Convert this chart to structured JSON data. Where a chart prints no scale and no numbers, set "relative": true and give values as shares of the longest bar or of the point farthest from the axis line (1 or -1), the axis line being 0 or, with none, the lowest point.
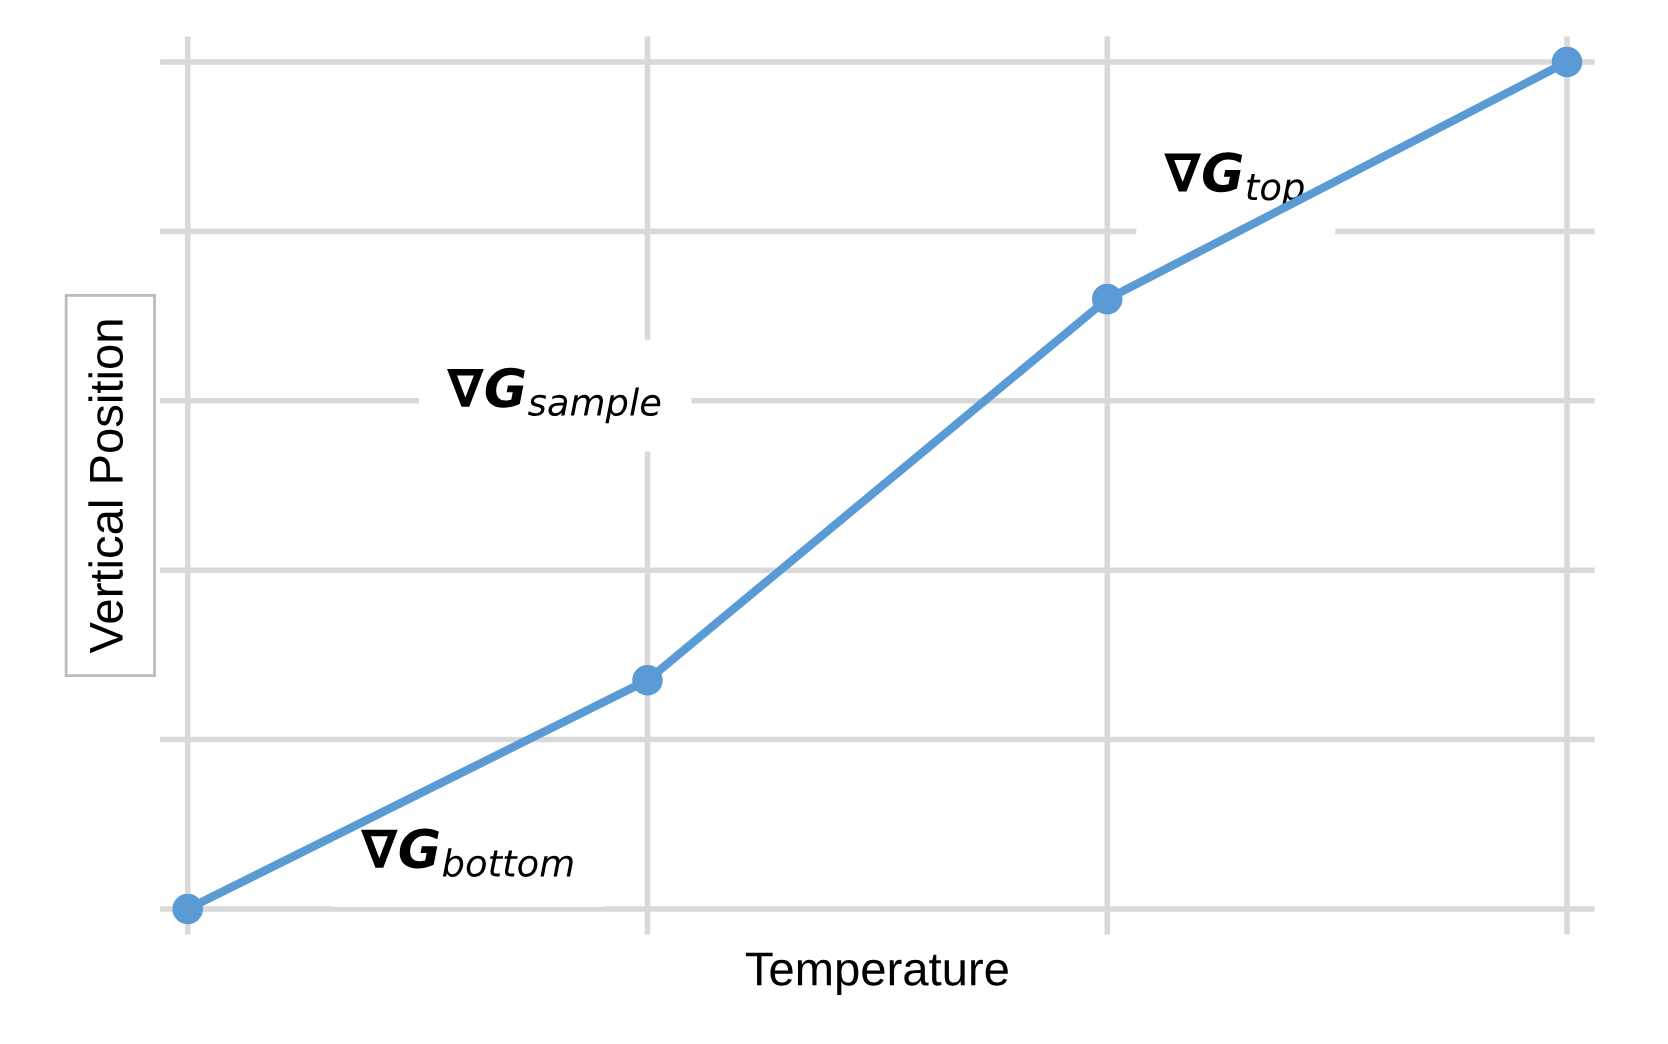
{
  "chart_data": {
    "type": "line",
    "relative": true,
    "xlabel": "Temperature",
    "ylabel": "Vertical Position",
    "categories": [
      null,
      null,
      null,
      null
    ],
    "series": [
      {
        "color": "#5b9bd5",
        "values": [
          0,
          0.27,
          0.72,
          1
        ]
      }
    ],
    "marker": "circle",
    "line_style": "solid",
    "grid": true,
    "tick_labels": false,
    "annotations": [
      "∇G$_{top}$",
      "∇G$_{sample}$",
      "∇G$_{bottom}$"
    ]
  }
}
